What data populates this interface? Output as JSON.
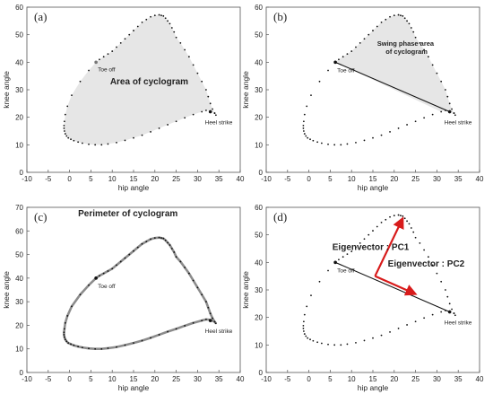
{
  "figure": {
    "background": "#ffffff",
    "axis_color": "#555555",
    "fill_color": "#e6e6e6",
    "dot_color": "#111111",
    "perimeter_color": "#8c8c8c",
    "vector_color": "#d81b1b"
  },
  "chart_data": [
    {
      "type": "scatter",
      "panel_label": "(a)",
      "xlabel": "hip angle",
      "ylabel": "knee angle",
      "xlim": [
        -10,
        40
      ],
      "ylim": [
        0,
        60
      ],
      "xticks": [
        -10,
        -5,
        0,
        5,
        10,
        15,
        20,
        25,
        30,
        35,
        40
      ],
      "yticks": [
        0,
        10,
        20,
        30,
        40,
        50,
        60
      ],
      "toe_off": [
        6.2,
        40
      ],
      "heel_strike": [
        33,
        22
      ],
      "highlight": "area",
      "annotations": {
        "toe_off": "Toe off",
        "heel_strike": "Heel strike",
        "area": "Area of cyclogram"
      },
      "series": [
        {
          "x": [
            6.2,
            4.5,
            2.5,
            0.5,
            -0.5,
            -1.0,
            -1.2,
            -1.3,
            -1.3,
            -1.2,
            -1.0,
            -0.7,
            -0.3,
            0.3,
            1.0,
            2.0,
            3.0,
            4.5,
            6.0,
            7.5,
            9.0,
            11.0,
            13.0,
            15.0,
            17.0,
            19.0,
            21.0,
            23.0,
            25.0,
            27.0,
            29.0,
            31.0,
            32.0,
            33.0,
            34.0,
            34.3,
            34.0,
            33.5,
            33.0,
            32.5,
            32.0,
            31.0,
            30.0,
            29.0,
            28.0,
            27.0,
            26.0,
            25.0,
            24.5,
            24.0,
            23.5,
            23.0,
            22.5,
            22.0,
            21.5,
            21.0,
            20.0,
            19.0,
            18.0,
            17.0,
            16.0,
            15.0,
            14.0,
            13.0,
            12.0,
            11.0,
            10.0,
            9.0,
            8.0,
            7.0,
            6.2
          ],
          "y": [
            40,
            37,
            33,
            28,
            24,
            21,
            18.5,
            17,
            16,
            15,
            14,
            13.2,
            12.5,
            12,
            11.5,
            11,
            10.6,
            10.2,
            10,
            10,
            10.3,
            10.8,
            11.6,
            12.5,
            13.5,
            14.7,
            16,
            17.3,
            18.5,
            19.8,
            21,
            22,
            22.5,
            22.3,
            21.5,
            20.8,
            21.5,
            23,
            25,
            27.5,
            30,
            33,
            36,
            39,
            42,
            44.5,
            47,
            49,
            51,
            52.5,
            54,
            55,
            56,
            56.8,
            57,
            57.2,
            57,
            56.5,
            55.5,
            54.5,
            53,
            51.5,
            50,
            48.5,
            47,
            45.5,
            44,
            43,
            42,
            41,
            40
          ]
        }
      ]
    },
    {
      "type": "scatter",
      "panel_label": "(b)",
      "xlabel": "hip angle",
      "ylabel": "knee angle",
      "xlim": [
        -10,
        40
      ],
      "ylim": [
        0,
        60
      ],
      "xticks": [
        -10,
        -5,
        0,
        5,
        10,
        15,
        20,
        25,
        30,
        35,
        40
      ],
      "yticks": [
        0,
        10,
        20,
        30,
        40,
        50,
        60
      ],
      "toe_off": [
        6.2,
        40
      ],
      "heel_strike": [
        33,
        22
      ],
      "highlight": "swing",
      "annotations": {
        "toe_off": "Toe off",
        "heel_strike": "Heel strike",
        "area_line1": "Swing phase area",
        "area_line2": "of cyclogram"
      }
    },
    {
      "type": "scatter",
      "panel_label": "(c)",
      "xlabel": "hip angle",
      "ylabel": "knee angle",
      "xlim": [
        -10,
        40
      ],
      "ylim": [
        0,
        70
      ],
      "xticks": [
        -10,
        -5,
        0,
        5,
        10,
        15,
        20,
        25,
        30,
        35,
        40
      ],
      "yticks": [
        0,
        10,
        20,
        30,
        40,
        50,
        60,
        70
      ],
      "toe_off": [
        6.2,
        40
      ],
      "heel_strike": [
        33,
        22
      ],
      "highlight": "perimeter",
      "annotations": {
        "toe_off": "Toe off",
        "heel_strike": "Heel strike",
        "perimeter": "Perimeter of cyclogram"
      }
    },
    {
      "type": "scatter",
      "panel_label": "(d)",
      "xlabel": "hip angle",
      "ylabel": "knee angle",
      "xlim": [
        -10,
        40
      ],
      "ylim": [
        0,
        60
      ],
      "xticks": [
        -10,
        -5,
        0,
        5,
        10,
        15,
        20,
        25,
        30,
        35,
        40
      ],
      "yticks": [
        0,
        10,
        20,
        30,
        40,
        50,
        60
      ],
      "toe_off": [
        6.2,
        40
      ],
      "heel_strike": [
        33,
        22
      ],
      "highlight": "eigen",
      "pc_origin": [
        15.5,
        35
      ],
      "pc1_tip": [
        22,
        56
      ],
      "pc2_tip": [
        25,
        28.5
      ],
      "annotations": {
        "toe_off": "Toe off",
        "heel_strike": "Heel strike",
        "pc1": "Eigenvector : PC1",
        "pc2": "Eigenvector : PC2"
      }
    }
  ]
}
